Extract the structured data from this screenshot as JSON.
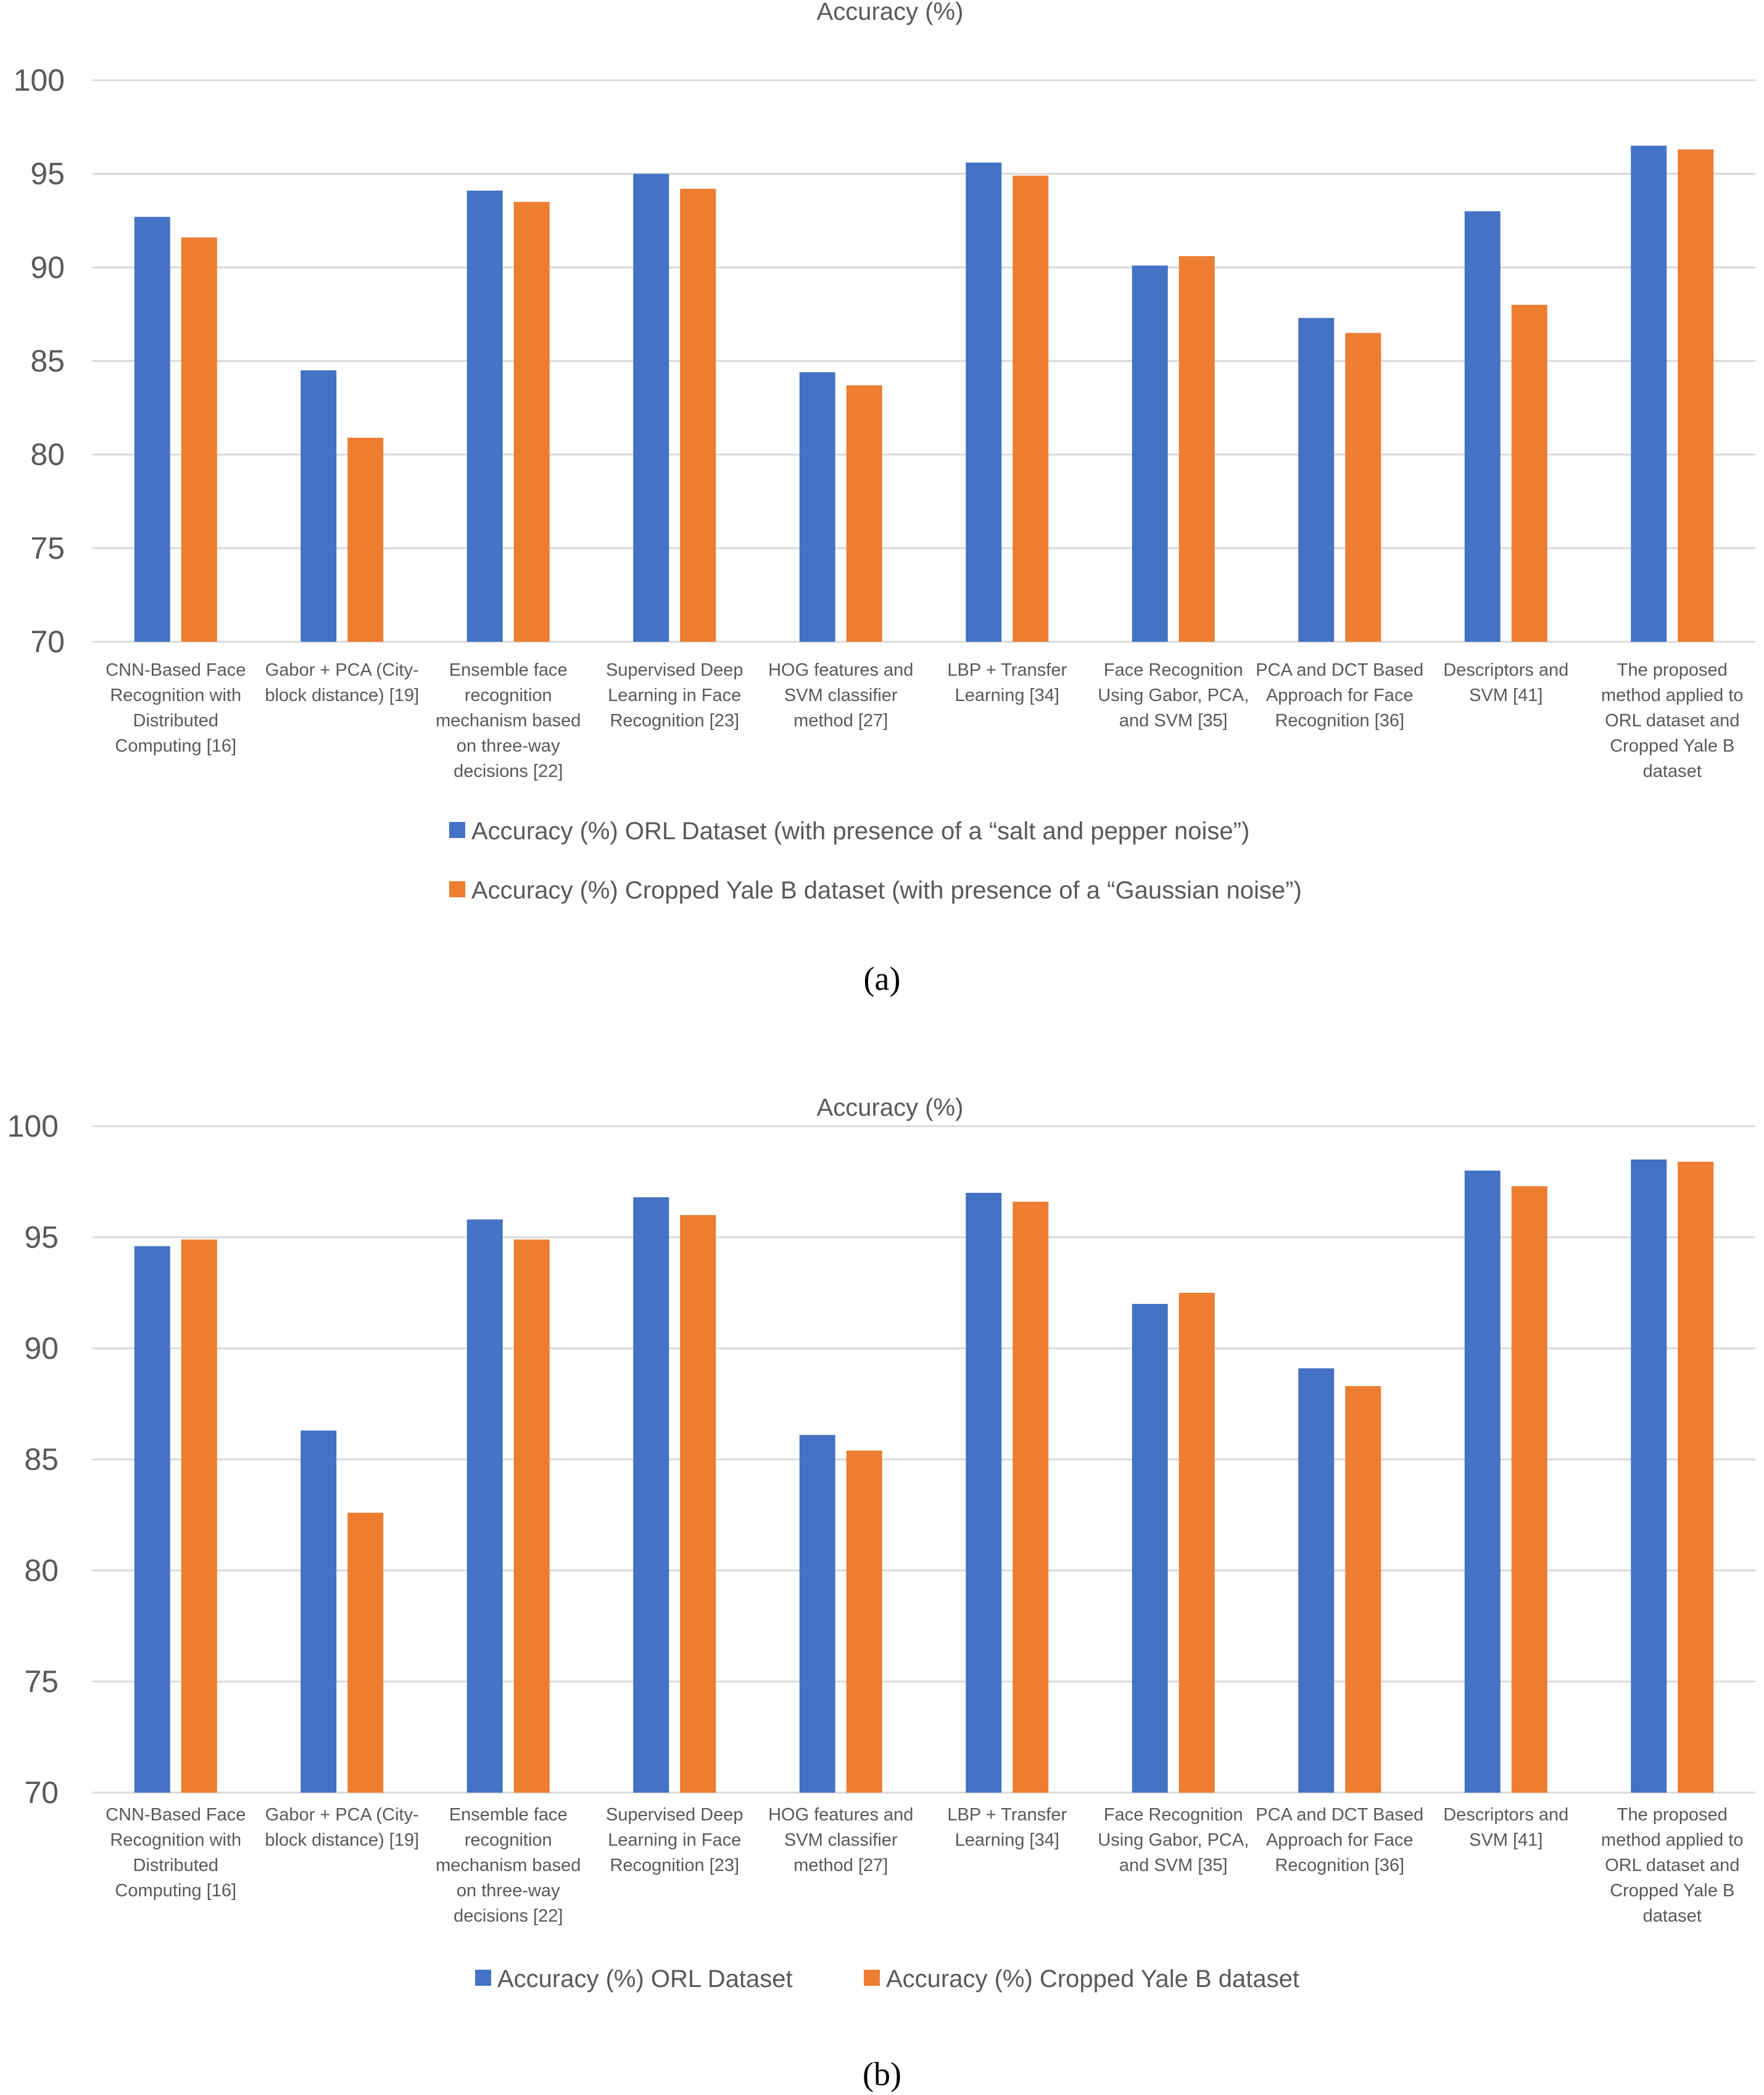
{
  "chart_data": [
    {
      "id": "a",
      "type": "bar",
      "title": "Accuracy (%)",
      "caption": "(a)",
      "ylim": [
        70,
        100
      ],
      "yticks": [
        70,
        75,
        80,
        85,
        90,
        95,
        100
      ],
      "grid": true,
      "legend_position": "bottom",
      "legend_layout": "stacked",
      "categories": [
        "CNN-Based Face Recognition with Distributed Computing [16]",
        "Gabor + PCA (City-block distance) [19]",
        "Ensemble face recognition mechanism based on three-way decisions [22]",
        "Supervised Deep Learning in Face Recognition [23]",
        "HOG features and SVM classifier method [27]",
        "LBP + Transfer Learning [34]",
        "Face Recognition Using Gabor, PCA, and SVM [35]",
        "PCA and DCT Based Approach for Face Recognition [36]",
        "Descriptors and SVM [41]",
        "The proposed method applied to ORL dataset and Cropped Yale B dataset"
      ],
      "category_lines": [
        [
          "CNN-Based Face",
          "Recognition with",
          "Distributed",
          "Computing [16]"
        ],
        [
          "Gabor + PCA (City-",
          "block distance) [19]"
        ],
        [
          "Ensemble face",
          "recognition",
          "mechanism based",
          "on three-way",
          "decisions [22]"
        ],
        [
          "Supervised Deep",
          "Learning in Face",
          "Recognition [23]"
        ],
        [
          "HOG features and",
          "SVM classifier",
          "method [27]"
        ],
        [
          "LBP + Transfer",
          "Learning [34]"
        ],
        [
          "Face Recognition",
          "Using Gabor, PCA,",
          "and SVM [35]"
        ],
        [
          "PCA and DCT Based",
          "Approach for Face",
          "Recognition [36]"
        ],
        [
          "Descriptors and",
          "SVM [41]"
        ],
        [
          "The proposed",
          "method applied to",
          "ORL dataset and",
          "Cropped Yale B",
          "dataset"
        ]
      ],
      "series": [
        {
          "name": "Accuracy (%) ORL Dataset (with presence of a “salt and pepper noise”)",
          "color": "#4472c4",
          "values": [
            92.7,
            84.5,
            94.1,
            95.0,
            84.4,
            95.6,
            90.1,
            87.3,
            93.0,
            96.5
          ]
        },
        {
          "name": "Accuracy (%) Cropped Yale B dataset (with presence of a “Gaussian noise”)",
          "color": "#ed7d31",
          "values": [
            91.6,
            80.9,
            93.5,
            94.2,
            83.7,
            94.9,
            90.6,
            86.5,
            88.0,
            96.3
          ]
        }
      ]
    },
    {
      "id": "b",
      "type": "bar",
      "title": "Accuracy (%)",
      "caption": "(b)",
      "ylim": [
        70,
        100
      ],
      "yticks": [
        70,
        75,
        80,
        85,
        90,
        95,
        100
      ],
      "grid": true,
      "legend_position": "bottom",
      "legend_layout": "inline",
      "categories": [
        "CNN-Based Face Recognition with Distributed Computing [16]",
        "Gabor + PCA (City-block distance) [19]",
        "Ensemble face recognition mechanism based on three-way decisions [22]",
        "Supervised Deep Learning in Face Recognition [23]",
        "HOG features and SVM classifier method [27]",
        "LBP + Transfer Learning [34]",
        "Face Recognition Using Gabor, PCA, and SVM [35]",
        "PCA and DCT Based Approach for Face Recognition [36]",
        "Descriptors and SVM [41]",
        "The proposed method applied to ORL dataset and Cropped Yale B dataset"
      ],
      "category_lines": [
        [
          "CNN-Based Face",
          "Recognition with",
          "Distributed",
          "Computing [16]"
        ],
        [
          "Gabor + PCA (City-",
          "block distance) [19]"
        ],
        [
          "Ensemble face",
          "recognition",
          "mechanism based",
          "on three-way",
          "decisions [22]"
        ],
        [
          "Supervised Deep",
          "Learning in Face",
          "Recognition [23]"
        ],
        [
          "HOG features and",
          "SVM classifier",
          "method [27]"
        ],
        [
          "LBP + Transfer",
          "Learning [34]"
        ],
        [
          "Face Recognition",
          "Using Gabor, PCA,",
          "and SVM [35]"
        ],
        [
          "PCA and DCT Based",
          "Approach for Face",
          "Recognition [36]"
        ],
        [
          "Descriptors and",
          "SVM [41]"
        ],
        [
          "The proposed",
          "method applied to",
          "ORL dataset and",
          "Cropped Yale B",
          "dataset"
        ]
      ],
      "series": [
        {
          "name": "Accuracy (%) ORL Dataset",
          "color": "#4472c4",
          "values": [
            94.6,
            86.3,
            95.8,
            96.8,
            86.1,
            97.0,
            92.0,
            89.1,
            98.0,
            98.5
          ]
        },
        {
          "name": "Accuracy (%) Cropped Yale B dataset",
          "color": "#ed7d31",
          "values": [
            94.9,
            82.6,
            94.9,
            96.0,
            85.4,
            96.6,
            92.5,
            88.3,
            97.3,
            98.4
          ]
        }
      ]
    }
  ]
}
